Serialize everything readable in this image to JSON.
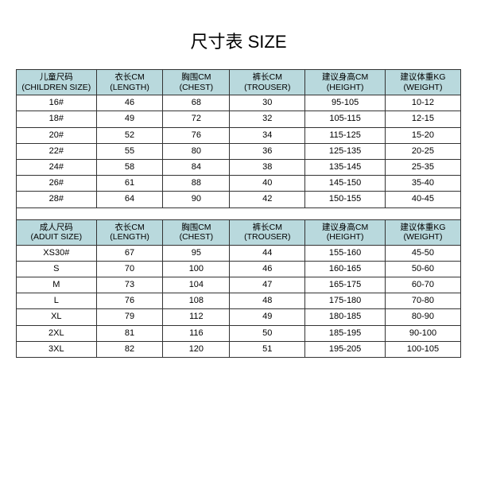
{
  "title": "尺寸表 SIZE",
  "tables": {
    "children": {
      "headers": [
        {
          "cn": "儿童尺码",
          "en": "(CHILDREN SIZE)"
        },
        {
          "cn": "衣长CM",
          "en": "(LENGTH)"
        },
        {
          "cn": "胸围CM",
          "en": "(CHEST)"
        },
        {
          "cn": "裤长CM",
          "en": "(TROUSER)"
        },
        {
          "cn": "建议身高CM",
          "en": "(HEIGHT)"
        },
        {
          "cn": "建议体重KG",
          "en": "(WEIGHT)"
        }
      ],
      "rows": [
        [
          "16#",
          "46",
          "68",
          "30",
          "95-105",
          "10-12"
        ],
        [
          "18#",
          "49",
          "72",
          "32",
          "105-115",
          "12-15"
        ],
        [
          "20#",
          "52",
          "76",
          "34",
          "115-125",
          "15-20"
        ],
        [
          "22#",
          "55",
          "80",
          "36",
          "125-135",
          "20-25"
        ],
        [
          "24#",
          "58",
          "84",
          "38",
          "135-145",
          "25-35"
        ],
        [
          "26#",
          "61",
          "88",
          "40",
          "145-150",
          "35-40"
        ],
        [
          "28#",
          "64",
          "90",
          "42",
          "150-155",
          "40-45"
        ]
      ]
    },
    "adult": {
      "headers": [
        {
          "cn": "成人尺码",
          "en": "(ADUIT SIZE)"
        },
        {
          "cn": "衣长CM",
          "en": "(LENGTH)"
        },
        {
          "cn": "胸围CM",
          "en": "(CHEST)"
        },
        {
          "cn": "裤长CM",
          "en": "(TROUSER)"
        },
        {
          "cn": "建议身高CM",
          "en": "(HEIGHT)"
        },
        {
          "cn": "建议体重KG",
          "en": "(WEIGHT)"
        }
      ],
      "rows": [
        [
          "XS30#",
          "67",
          "95",
          "44",
          "155-160",
          "45-50"
        ],
        [
          "S",
          "70",
          "100",
          "46",
          "160-165",
          "50-60"
        ],
        [
          "M",
          "73",
          "104",
          "47",
          "165-175",
          "60-70"
        ],
        [
          "L",
          "76",
          "108",
          "48",
          "175-180",
          "70-80"
        ],
        [
          "XL",
          "79",
          "112",
          "49",
          "180-185",
          "80-90"
        ],
        [
          "2XL",
          "81",
          "116",
          "50",
          "185-195",
          "90-100"
        ],
        [
          "3XL",
          "82",
          "120",
          "51",
          "195-205",
          "100-105"
        ]
      ]
    }
  },
  "style": {
    "header_bg": "#b9d9dd",
    "border_color": "#333333",
    "bg": "#ffffff",
    "title_fontsize": 22,
    "cell_fontsize": 11,
    "col_widths_pct": [
      18,
      15,
      15,
      17,
      18,
      17
    ]
  }
}
